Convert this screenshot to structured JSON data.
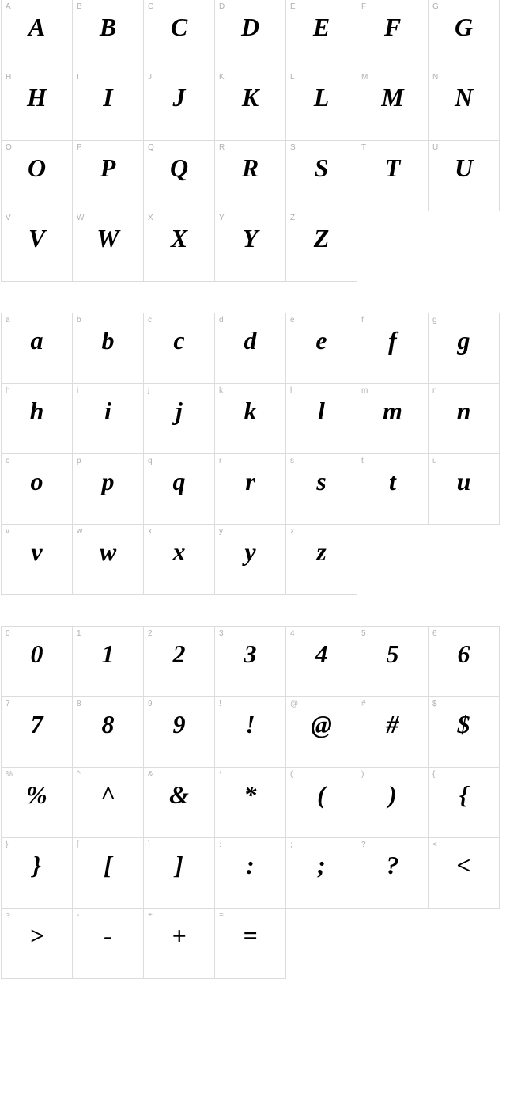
{
  "page": {
    "background_color": "#ffffff",
    "cell_border_color": "#dcdcdc",
    "label_color": "#b0b0b0",
    "glyph_color": "#000000",
    "label_fontsize": 10,
    "glyph_fontsize": 32,
    "cell_size": 90,
    "columns": 7,
    "font_style": "bold-italic-script"
  },
  "sections": [
    {
      "name": "uppercase",
      "cells": [
        {
          "label": "A",
          "glyph": "A"
        },
        {
          "label": "B",
          "glyph": "B"
        },
        {
          "label": "C",
          "glyph": "C"
        },
        {
          "label": "D",
          "glyph": "D"
        },
        {
          "label": "E",
          "glyph": "E"
        },
        {
          "label": "F",
          "glyph": "F"
        },
        {
          "label": "G",
          "glyph": "G"
        },
        {
          "label": "H",
          "glyph": "H"
        },
        {
          "label": "I",
          "glyph": "I"
        },
        {
          "label": "J",
          "glyph": "J"
        },
        {
          "label": "K",
          "glyph": "K"
        },
        {
          "label": "L",
          "glyph": "L"
        },
        {
          "label": "M",
          "glyph": "M"
        },
        {
          "label": "N",
          "glyph": "N"
        },
        {
          "label": "O",
          "glyph": "O"
        },
        {
          "label": "P",
          "glyph": "P"
        },
        {
          "label": "Q",
          "glyph": "Q"
        },
        {
          "label": "R",
          "glyph": "R"
        },
        {
          "label": "S",
          "glyph": "S"
        },
        {
          "label": "T",
          "glyph": "T"
        },
        {
          "label": "U",
          "glyph": "U"
        },
        {
          "label": "V",
          "glyph": "V"
        },
        {
          "label": "W",
          "glyph": "W"
        },
        {
          "label": "X",
          "glyph": "X"
        },
        {
          "label": "Y",
          "glyph": "Y"
        },
        {
          "label": "Z",
          "glyph": "Z"
        }
      ]
    },
    {
      "name": "lowercase",
      "cells": [
        {
          "label": "a",
          "glyph": "a"
        },
        {
          "label": "b",
          "glyph": "b"
        },
        {
          "label": "c",
          "glyph": "c"
        },
        {
          "label": "d",
          "glyph": "d"
        },
        {
          "label": "e",
          "glyph": "e"
        },
        {
          "label": "f",
          "glyph": "f"
        },
        {
          "label": "g",
          "glyph": "g"
        },
        {
          "label": "h",
          "glyph": "h"
        },
        {
          "label": "i",
          "glyph": "i"
        },
        {
          "label": "j",
          "glyph": "j"
        },
        {
          "label": "k",
          "glyph": "k"
        },
        {
          "label": "l",
          "glyph": "l"
        },
        {
          "label": "m",
          "glyph": "m"
        },
        {
          "label": "n",
          "glyph": "n"
        },
        {
          "label": "o",
          "glyph": "o"
        },
        {
          "label": "p",
          "glyph": "p"
        },
        {
          "label": "q",
          "glyph": "q"
        },
        {
          "label": "r",
          "glyph": "r"
        },
        {
          "label": "s",
          "glyph": "s"
        },
        {
          "label": "t",
          "glyph": "t"
        },
        {
          "label": "u",
          "glyph": "u"
        },
        {
          "label": "v",
          "glyph": "v"
        },
        {
          "label": "w",
          "glyph": "w"
        },
        {
          "label": "x",
          "glyph": "x"
        },
        {
          "label": "y",
          "glyph": "y"
        },
        {
          "label": "z",
          "glyph": "z"
        }
      ]
    },
    {
      "name": "numbers-symbols",
      "cells": [
        {
          "label": "0",
          "glyph": "0"
        },
        {
          "label": "1",
          "glyph": "1"
        },
        {
          "label": "2",
          "glyph": "2"
        },
        {
          "label": "3",
          "glyph": "3"
        },
        {
          "label": "4",
          "glyph": "4"
        },
        {
          "label": "5",
          "glyph": "5"
        },
        {
          "label": "6",
          "glyph": "6"
        },
        {
          "label": "7",
          "glyph": "7"
        },
        {
          "label": "8",
          "glyph": "8"
        },
        {
          "label": "9",
          "glyph": "9"
        },
        {
          "label": "!",
          "glyph": "!"
        },
        {
          "label": "@",
          "glyph": "@"
        },
        {
          "label": "#",
          "glyph": "#"
        },
        {
          "label": "$",
          "glyph": "$"
        },
        {
          "label": "%",
          "glyph": "%"
        },
        {
          "label": "^",
          "glyph": "^"
        },
        {
          "label": "&",
          "glyph": "&"
        },
        {
          "label": "*",
          "glyph": "*"
        },
        {
          "label": "(",
          "glyph": "("
        },
        {
          "label": ")",
          "glyph": ")"
        },
        {
          "label": "{",
          "glyph": "{"
        },
        {
          "label": "}",
          "glyph": "}"
        },
        {
          "label": "[",
          "glyph": "["
        },
        {
          "label": "]",
          "glyph": "]"
        },
        {
          "label": ":",
          "glyph": ":"
        },
        {
          "label": ";",
          "glyph": ";"
        },
        {
          "label": "?",
          "glyph": "?"
        },
        {
          "label": "<",
          "glyph": "<"
        },
        {
          "label": ">",
          "glyph": ">"
        },
        {
          "label": "-",
          "glyph": "-"
        },
        {
          "label": "+",
          "glyph": "+"
        },
        {
          "label": "=",
          "glyph": "="
        }
      ]
    }
  ]
}
